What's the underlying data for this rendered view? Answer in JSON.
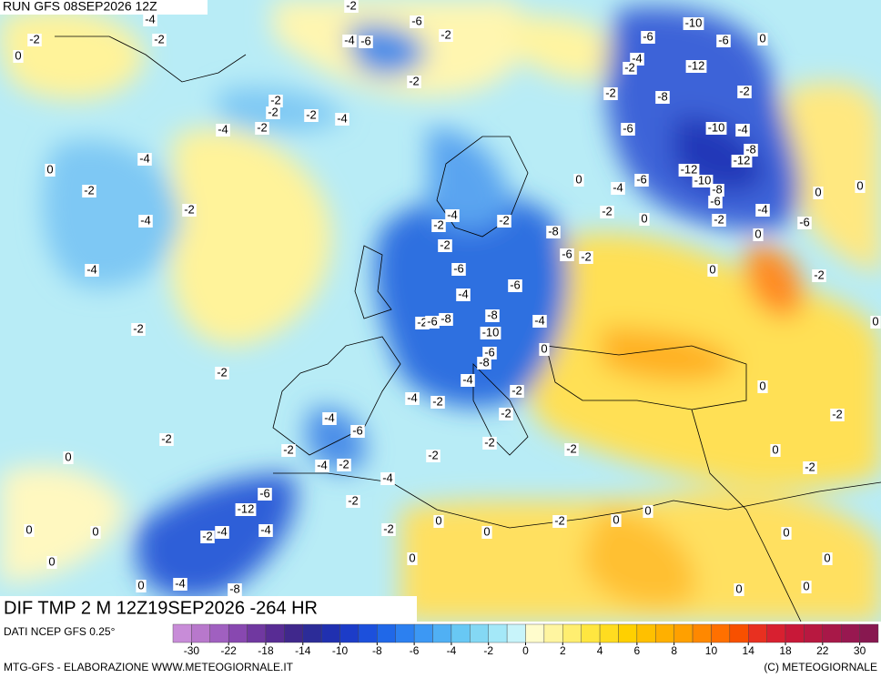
{
  "run_label": "RUN GFS 08SEP2026 12Z",
  "title": "DIF TMP 2 M 12Z19SEP2026 -264 HR",
  "source": "DATI NCEP GFS 0.25°",
  "credits_left": "MTG-GFS - ELABORAZIONE WWW.METEOGIORNALE.IT",
  "credits_right": "(C) METEOGIORNALE",
  "colorbar": {
    "colors": [
      "#c88cd8",
      "#b878cc",
      "#a060c0",
      "#8848b0",
      "#7038a0",
      "#582c94",
      "#40288c",
      "#2c2c98",
      "#2030b0",
      "#1c3cc8",
      "#1c50dc",
      "#2068e8",
      "#2c80f0",
      "#3c98f4",
      "#50b0f4",
      "#68c8f4",
      "#84d8f4",
      "#a4e8f8",
      "#c8f4fa",
      "#fffccc",
      "#fff5a0",
      "#ffee70",
      "#ffe640",
      "#ffdc20",
      "#ffd000",
      "#ffc000",
      "#ffb000",
      "#ffa000",
      "#ff8800",
      "#ff7000",
      "#f85000",
      "#e83020",
      "#d82030",
      "#c81838",
      "#b81840",
      "#a81848",
      "#981850",
      "#881850"
    ],
    "ticks": [
      -30,
      -22,
      -18,
      -14,
      -10,
      -8,
      -6,
      -4,
      -2,
      0,
      2,
      4,
      6,
      8,
      10,
      14,
      18,
      22,
      30
    ]
  },
  "contour_labels": [
    -4,
    -2,
    -2,
    0,
    -2,
    -6,
    -4,
    -6,
    -2,
    -2,
    -2,
    -2,
    -2,
    -4,
    -4,
    -2,
    0,
    -4,
    -2,
    -2,
    -4,
    -4,
    -2,
    -2,
    -2,
    0,
    0,
    0,
    0,
    -10,
    -6,
    -6,
    0,
    -4,
    -2,
    -12,
    -2,
    -8,
    -2,
    -6,
    -10,
    -4,
    -8,
    -12,
    -12,
    -10,
    -6,
    -4,
    -8,
    -6,
    0,
    -2,
    0,
    -2,
    -4,
    -6,
    0,
    0,
    0,
    0,
    -2,
    0,
    -4,
    -2,
    -2,
    -8,
    -6,
    -2,
    -2,
    -6,
    -6,
    -4,
    -2,
    -8,
    -8,
    -6,
    -10,
    -4,
    -6,
    -8,
    0,
    -4,
    -2,
    -4,
    -2,
    0,
    -2,
    -2,
    -4,
    -6,
    -2,
    -2,
    -2,
    -2,
    -4,
    -2,
    -4,
    0,
    -2,
    -6,
    -12,
    -2,
    -2,
    0,
    0,
    0,
    0,
    -2,
    -4,
    -4,
    -2,
    0,
    0,
    0,
    0,
    0,
    0,
    -4,
    -8,
    -6
  ]
}
